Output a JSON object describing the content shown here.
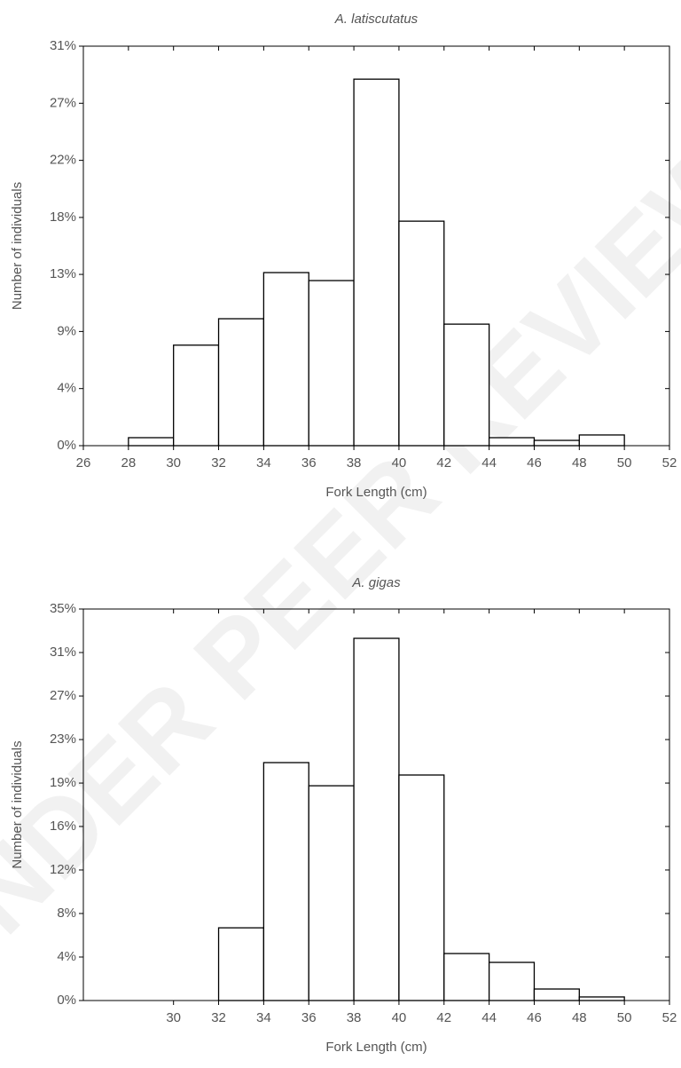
{
  "watermark": "UNDER PEER REVIEW",
  "chart_data": [
    {
      "type": "histogram",
      "title": "A. latiscutatus",
      "x_label": "Fork Length (cm)",
      "y_label": "Number of individuals",
      "bins": [
        28,
        30,
        32,
        34,
        36,
        38,
        40,
        42,
        44,
        46,
        48,
        50
      ],
      "values": [
        0.62,
        7.8,
        9.85,
        13.43,
        12.81,
        28.44,
        17.42,
        9.43,
        0.62,
        0.41,
        0.83
      ],
      "color": "#ffffff",
      "xlim": [
        26,
        52
      ],
      "xticks": [
        26,
        28,
        30,
        32,
        34,
        36,
        38,
        40,
        42,
        44,
        46,
        48,
        50,
        52
      ],
      "ylim": [
        0,
        31
      ],
      "yticks": [
        {
          "value": 0,
          "label": "0%"
        },
        {
          "value": 4.43,
          "label": "4%"
        },
        {
          "value": 8.86,
          "label": "9%"
        },
        {
          "value": 13.29,
          "label": "13%"
        },
        {
          "value": 17.71,
          "label": "18%"
        },
        {
          "value": 22.14,
          "label": "22%"
        },
        {
          "value": 26.57,
          "label": "27%"
        },
        {
          "value": 31,
          "label": "31%"
        }
      ]
    },
    {
      "type": "histogram",
      "title": "A. gigas",
      "x_label": "Fork Length (cm)",
      "y_label": "Number of individuals",
      "bins": [
        32,
        34,
        36,
        38,
        40,
        42,
        44,
        46,
        48,
        50
      ],
      "values": [
        6.5,
        21.27,
        19.2,
        32.38,
        20.16,
        4.2,
        3.41,
        1.03,
        0.32
      ],
      "color": "#ffffff",
      "xlim": [
        26,
        52
      ],
      "xticks": [
        30,
        32,
        34,
        36,
        38,
        40,
        42,
        44,
        46,
        48,
        50,
        52
      ],
      "ylim": [
        0,
        35
      ],
      "yticks": [
        {
          "value": 0,
          "label": "0%"
        },
        {
          "value": 3.89,
          "label": "4%"
        },
        {
          "value": 7.78,
          "label": "8%"
        },
        {
          "value": 11.67,
          "label": "12%"
        },
        {
          "value": 15.56,
          "label": "16%"
        },
        {
          "value": 19.44,
          "label": "19%"
        },
        {
          "value": 23.33,
          "label": "23%"
        },
        {
          "value": 27.22,
          "label": "27%"
        },
        {
          "value": 31.11,
          "label": "31%"
        },
        {
          "value": 35,
          "label": "35%"
        }
      ]
    }
  ]
}
